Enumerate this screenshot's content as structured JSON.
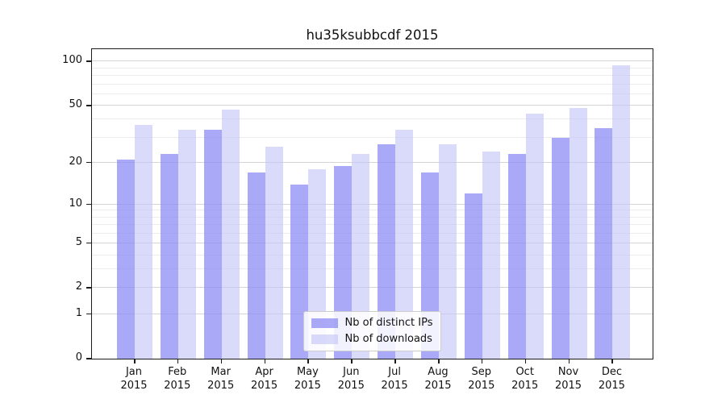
{
  "figure": {
    "title": "hu35ksubbcdf 2015"
  },
  "chart_data": {
    "type": "bar",
    "title": "hu35ksubbcdf 2015",
    "categories": [
      "Jan",
      "Feb",
      "Mar",
      "Apr",
      "May",
      "Jun",
      "Jul",
      "Aug",
      "Sep",
      "Oct",
      "Nov",
      "Dec"
    ],
    "category_year": "2015",
    "series": [
      {
        "name": "Nb of distinct IPs",
        "color": "rgba(140,140,244,0.75)",
        "values": [
          21,
          23,
          34,
          17,
          14,
          19,
          27,
          17,
          12,
          23,
          30,
          35
        ]
      },
      {
        "name": "Nb of downloads",
        "color": "rgba(197,197,249,0.63)",
        "values": [
          37,
          34,
          47,
          26,
          18,
          23,
          34,
          27,
          24,
          44,
          48,
          95
        ]
      }
    ],
    "xlabel": "",
    "ylabel": "",
    "yscale": "log1p",
    "ylim": [
      0,
      120
    ],
    "yticks": [
      100,
      50,
      20,
      10,
      5,
      2,
      1,
      0
    ],
    "major_gridlines": [
      1,
      2,
      5,
      10,
      20,
      50,
      100
    ],
    "minor_gridlines": [
      3,
      4,
      6,
      7,
      8,
      9,
      30,
      40,
      60,
      70,
      80,
      90
    ],
    "grid": true,
    "legend_position": "lower center"
  },
  "colors": {
    "bar_distinct_ips": "rgba(140,140,244,0.75)",
    "bar_downloads": "rgba(197,197,249,0.63)",
    "major_grid": "#d4d4d4",
    "minor_grid": "#ececec",
    "spine": "#1c1c1c",
    "legend_border": "#cccccc",
    "legend_background": "rgba(255,255,255,0.85)"
  }
}
